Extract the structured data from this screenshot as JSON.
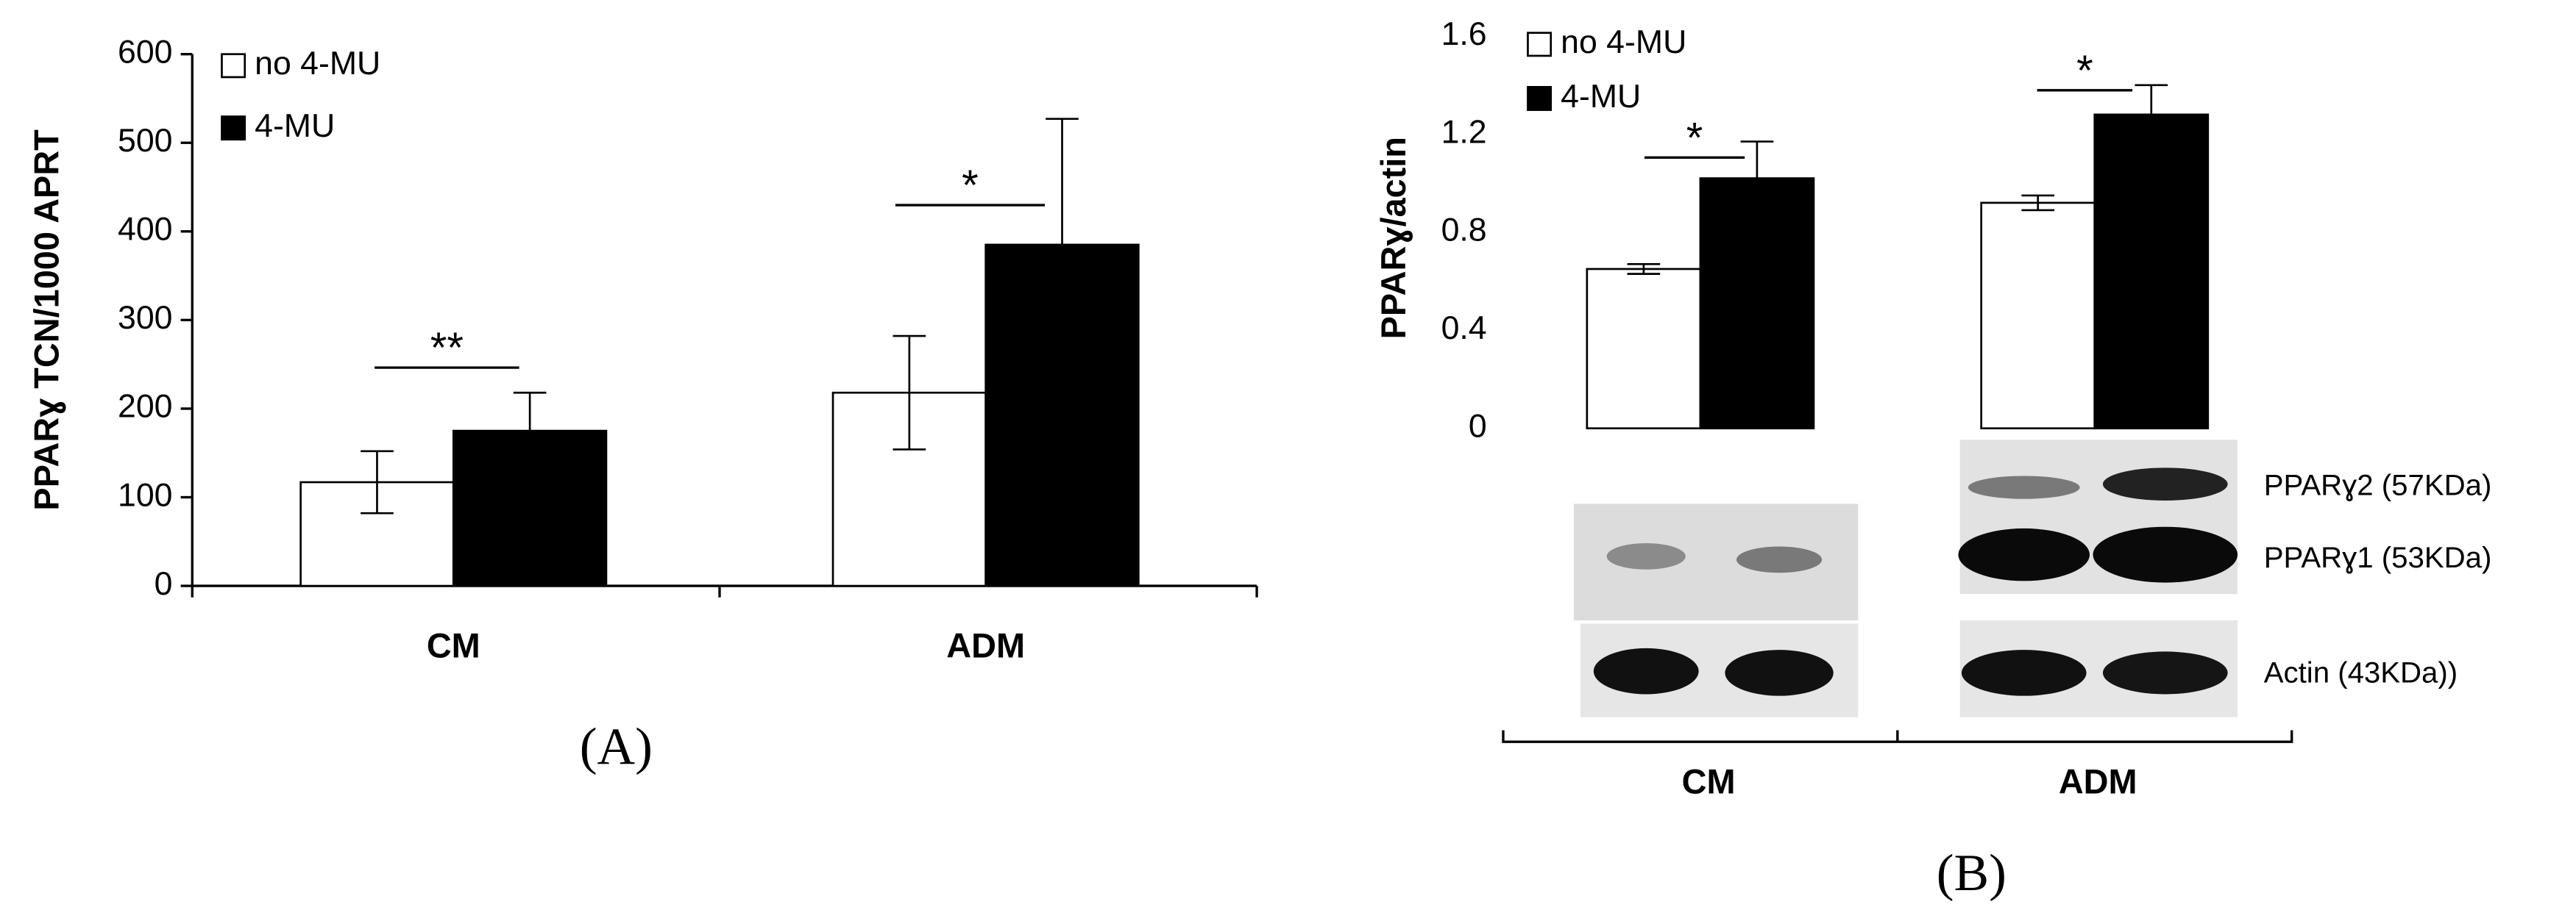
{
  "chart_data": [
    {
      "type": "bar",
      "panel_label": "(A)",
      "y_label": "PPARɣ TCN/1000 APRT",
      "categories": [
        "CM",
        "ADM"
      ],
      "series": [
        {
          "name": "no 4-MU",
          "color": "#ffffff",
          "values": [
            117,
            218
          ],
          "errors": [
            35,
            64
          ]
        },
        {
          "name": "4-MU",
          "color": "#000000",
          "values": [
            175,
            385
          ],
          "errors": [
            43,
            142
          ]
        }
      ],
      "annotations": [
        "**",
        "*"
      ],
      "ylim": [
        0,
        600
      ],
      "yticks": [
        0,
        100,
        200,
        300,
        400,
        500,
        600
      ]
    },
    {
      "type": "bar",
      "panel_label": "(B)",
      "y_label": "PPARɣ/actin",
      "categories": [
        "CM",
        "ADM"
      ],
      "series": [
        {
          "name": "no 4-MU",
          "color": "#ffffff",
          "values": [
            0.65,
            0.92
          ],
          "errors": [
            0.02,
            0.03
          ]
        },
        {
          "name": "4-MU",
          "color": "#000000",
          "values": [
            1.02,
            1.28
          ],
          "errors": [
            0.15,
            0.12
          ]
        }
      ],
      "annotations": [
        "*",
        "*"
      ],
      "blot_labels": [
        "PPARɣ2 (57KDa)",
        "PPARɣ1 (53KDa)",
        "Actin (43KDa))"
      ],
      "ylim": [
        0,
        1.6
      ],
      "yticks": [
        0,
        0.4,
        0.8,
        1.2,
        1.6
      ]
    }
  ]
}
